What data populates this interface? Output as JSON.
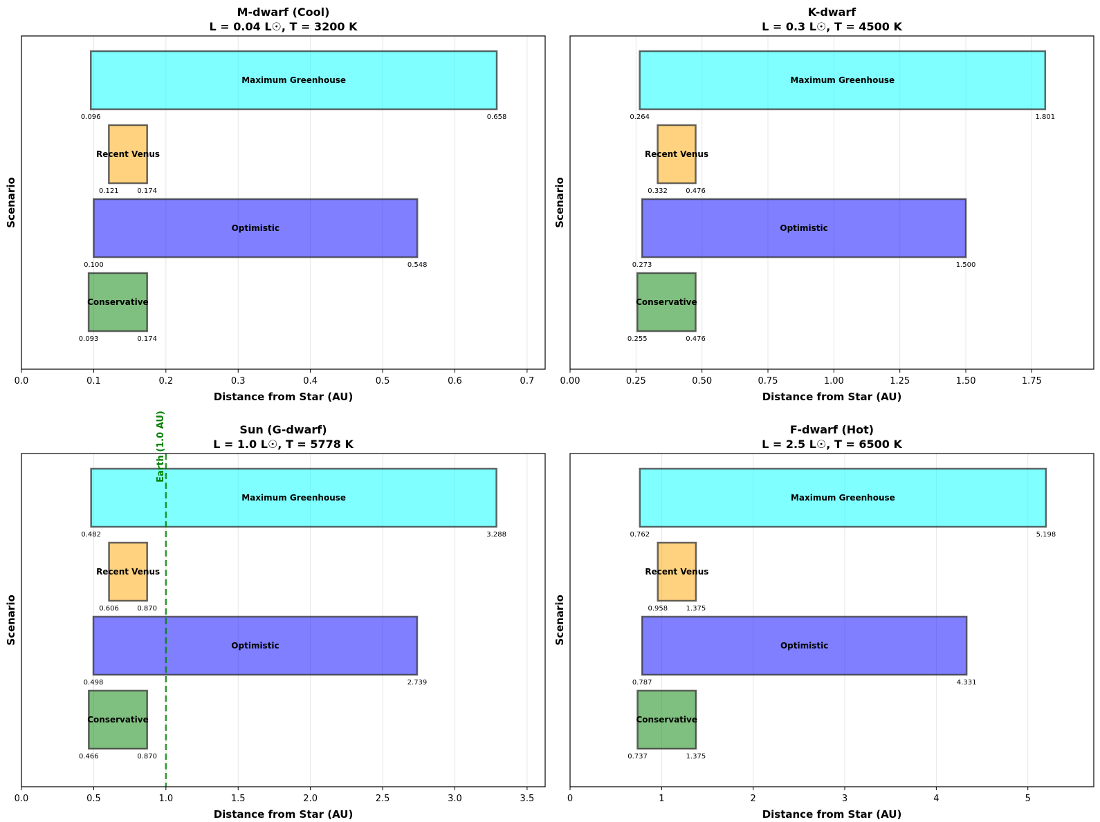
{
  "chart_data": [
    {
      "type": "bar",
      "orientation": "horizontal-range",
      "title_line1": "M-dwarf (Cool)",
      "title_line2": "L = 0.04 L☉, T = 3200 K",
      "xlabel": "Distance from Star (AU)",
      "ylabel": "Scenario",
      "xlim": [
        0,
        0.725
      ],
      "xticks": [
        0,
        0.1,
        0.2,
        0.3,
        0.4,
        0.5,
        0.6,
        0.7
      ],
      "xtick_labels": [
        "0.0",
        "0.1",
        "0.2",
        "0.3",
        "0.4",
        "0.5",
        "0.6",
        "0.7"
      ],
      "grid": "x",
      "reference_line": null,
      "scenarios": [
        {
          "name": "Conservative",
          "inner": 0.093,
          "outer": 0.174,
          "inner_label": "0.093",
          "outer_label": "0.174",
          "color": "#008000"
        },
        {
          "name": "Optimistic",
          "inner": 0.1,
          "outer": 0.548,
          "inner_label": "0.100",
          "outer_label": "0.548",
          "color": "#0000ff"
        },
        {
          "name": "Recent Venus",
          "inner": 0.121,
          "outer": 0.174,
          "inner_label": "0.121",
          "outer_label": "0.174",
          "color": "#ffa500"
        },
        {
          "name": "Maximum Greenhouse",
          "inner": 0.096,
          "outer": 0.658,
          "inner_label": "0.096",
          "outer_label": "0.658",
          "color": "#00ffff"
        }
      ]
    },
    {
      "type": "bar",
      "orientation": "horizontal-range",
      "title_line1": "K-dwarf",
      "title_line2": "L = 0.3 L☉, T = 4500 K",
      "xlabel": "Distance from Star (AU)",
      "ylabel": "Scenario",
      "xlim": [
        0,
        1.985
      ],
      "xticks": [
        0,
        0.25,
        0.5,
        0.75,
        1.0,
        1.25,
        1.5,
        1.75
      ],
      "xtick_labels": [
        "0.00",
        "0.25",
        "0.50",
        "0.75",
        "1.00",
        "1.25",
        "1.50",
        "1.75"
      ],
      "grid": "x",
      "reference_line": null,
      "scenarios": [
        {
          "name": "Conservative",
          "inner": 0.255,
          "outer": 0.476,
          "inner_label": "0.255",
          "outer_label": "0.476",
          "color": "#008000"
        },
        {
          "name": "Optimistic",
          "inner": 0.273,
          "outer": 1.5,
          "inner_label": "0.273",
          "outer_label": "1.500",
          "color": "#0000ff"
        },
        {
          "name": "Recent Venus",
          "inner": 0.332,
          "outer": 0.476,
          "inner_label": "0.332",
          "outer_label": "0.476",
          "color": "#ffa500"
        },
        {
          "name": "Maximum Greenhouse",
          "inner": 0.264,
          "outer": 1.801,
          "inner_label": "0.264",
          "outer_label": "1.801",
          "color": "#00ffff"
        }
      ]
    },
    {
      "type": "bar",
      "orientation": "horizontal-range",
      "title_line1": "Sun (G-dwarf)",
      "title_line2": "L = 1.0 L☉, T = 5778 K",
      "xlabel": "Distance from Star (AU)",
      "ylabel": "Scenario",
      "xlim": [
        0,
        3.625
      ],
      "xticks": [
        0,
        0.5,
        1.0,
        1.5,
        2.0,
        2.5,
        3.0,
        3.5
      ],
      "xtick_labels": [
        "0.0",
        "0.5",
        "1.0",
        "1.5",
        "2.0",
        "2.5",
        "3.0",
        "3.5"
      ],
      "grid": "x",
      "reference_line": {
        "x": 1.0,
        "label": "Earth (1.0 AU)",
        "color": "#008000"
      },
      "scenarios": [
        {
          "name": "Conservative",
          "inner": 0.466,
          "outer": 0.87,
          "inner_label": "0.466",
          "outer_label": "0.870",
          "color": "#008000"
        },
        {
          "name": "Optimistic",
          "inner": 0.498,
          "outer": 2.739,
          "inner_label": "0.498",
          "outer_label": "2.739",
          "color": "#0000ff"
        },
        {
          "name": "Recent Venus",
          "inner": 0.606,
          "outer": 0.87,
          "inner_label": "0.606",
          "outer_label": "0.870",
          "color": "#ffa500"
        },
        {
          "name": "Maximum Greenhouse",
          "inner": 0.482,
          "outer": 3.288,
          "inner_label": "0.482",
          "outer_label": "3.288",
          "color": "#00ffff"
        }
      ]
    },
    {
      "type": "bar",
      "orientation": "horizontal-range",
      "title_line1": "F-dwarf (Hot)",
      "title_line2": "L = 2.5 L☉, T = 6500 K",
      "xlabel": "Distance from Star (AU)",
      "ylabel": "Scenario",
      "xlim": [
        0,
        5.72
      ],
      "xticks": [
        0,
        1,
        2,
        3,
        4,
        5
      ],
      "xtick_labels": [
        "0",
        "1",
        "2",
        "3",
        "4",
        "5"
      ],
      "grid": "x",
      "reference_line": null,
      "scenarios": [
        {
          "name": "Conservative",
          "inner": 0.737,
          "outer": 1.375,
          "inner_label": "0.737",
          "outer_label": "1.375",
          "color": "#008000"
        },
        {
          "name": "Optimistic",
          "inner": 0.787,
          "outer": 4.331,
          "inner_label": "0.787",
          "outer_label": "4.331",
          "color": "#0000ff"
        },
        {
          "name": "Recent Venus",
          "inner": 0.958,
          "outer": 1.375,
          "inner_label": "0.958",
          "outer_label": "1.375",
          "color": "#ffa500"
        },
        {
          "name": "Maximum Greenhouse",
          "inner": 0.762,
          "outer": 5.198,
          "inner_label": "0.762",
          "outer_label": "5.198",
          "color": "#00ffff"
        }
      ]
    }
  ]
}
